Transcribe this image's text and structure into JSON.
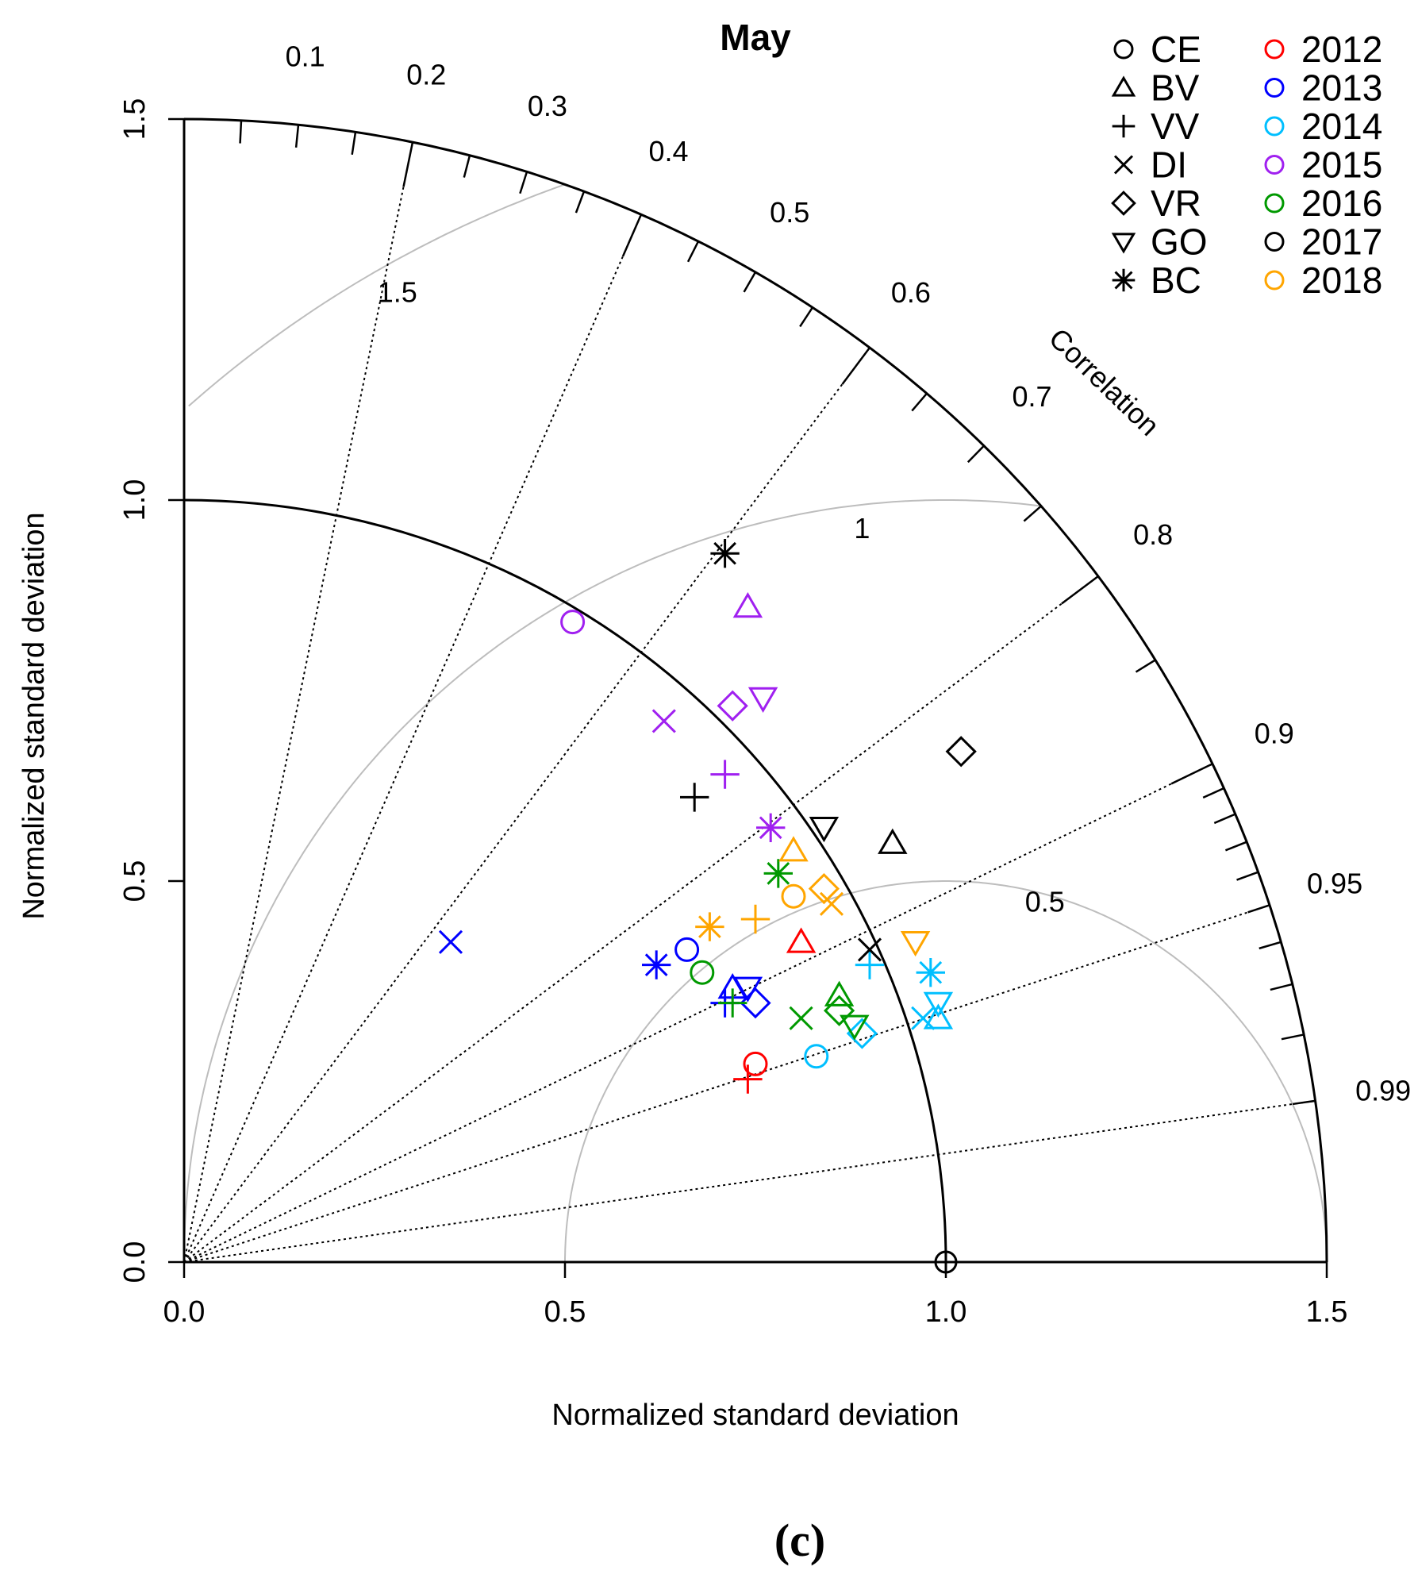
{
  "chart_data": {
    "type": "scatter",
    "subtype": "taylor-diagram",
    "title": "May",
    "xlabel": "Normalized standard deviation",
    "ylabel": "Normalized standard deviation",
    "correlation_label": "Correlation",
    "panel_label": "(c)",
    "sd_range": [
      0,
      1.5
    ],
    "sd_ticks": [
      "0.0",
      "0.5",
      "1.0",
      "1.5"
    ],
    "correlation_ticks": [
      "0.1",
      "0.2",
      "0.3",
      "0.4",
      "0.5",
      "0.6",
      "0.7",
      "0.8",
      "0.9",
      "0.95",
      "0.99"
    ],
    "rms_contour_labels": [
      "0.5",
      "1",
      "1.5"
    ],
    "legend_position": "top-right",
    "symbol_legend": [
      {
        "name": "CE",
        "marker": "circle-icon"
      },
      {
        "name": "BV",
        "marker": "triangle-up-icon"
      },
      {
        "name": "VV",
        "marker": "plus-icon"
      },
      {
        "name": "DI",
        "marker": "cross-icon"
      },
      {
        "name": "VR",
        "marker": "diamond-icon"
      },
      {
        "name": "GO",
        "marker": "triangle-down-icon"
      },
      {
        "name": "BC",
        "marker": "asterisk-icon"
      }
    ],
    "year_legend": [
      {
        "name": "2012",
        "color": "#ff0000"
      },
      {
        "name": "2013",
        "color": "#0000ff"
      },
      {
        "name": "2014",
        "color": "#00bfff"
      },
      {
        "name": "2015",
        "color": "#a020f0"
      },
      {
        "name": "2016",
        "color": "#009900"
      },
      {
        "name": "2017",
        "color": "#000000"
      },
      {
        "name": "2018",
        "color": "#ffa500"
      }
    ],
    "reference_point": {
      "x": 1.0,
      "y": 0.0
    },
    "points": [
      {
        "year": "2012",
        "station": "CE",
        "x": 0.75,
        "y": 0.26
      },
      {
        "year": "2012",
        "station": "VV",
        "x": 0.74,
        "y": 0.24
      },
      {
        "year": "2012",
        "station": "BV",
        "x": 0.81,
        "y": 0.42
      },
      {
        "year": "2013",
        "station": "CE",
        "x": 0.66,
        "y": 0.41
      },
      {
        "year": "2013",
        "station": "BC",
        "x": 0.62,
        "y": 0.39
      },
      {
        "year": "2013",
        "station": "DI",
        "x": 0.35,
        "y": 0.42
      },
      {
        "year": "2013",
        "station": "VV",
        "x": 0.71,
        "y": 0.34
      },
      {
        "year": "2013",
        "station": "BV",
        "x": 0.72,
        "y": 0.36
      },
      {
        "year": "2013",
        "station": "GO",
        "x": 0.74,
        "y": 0.36
      },
      {
        "year": "2013",
        "station": "VR",
        "x": 0.75,
        "y": 0.34
      },
      {
        "year": "2014",
        "station": "CE",
        "x": 0.83,
        "y": 0.27
      },
      {
        "year": "2014",
        "station": "VR",
        "x": 0.89,
        "y": 0.3
      },
      {
        "year": "2014",
        "station": "VV",
        "x": 0.9,
        "y": 0.39
      },
      {
        "year": "2014",
        "station": "BC",
        "x": 0.98,
        "y": 0.38
      },
      {
        "year": "2014",
        "station": "DI",
        "x": 0.97,
        "y": 0.32
      },
      {
        "year": "2014",
        "station": "BV",
        "x": 0.99,
        "y": 0.32
      },
      {
        "year": "2014",
        "station": "GO",
        "x": 0.99,
        "y": 0.34
      },
      {
        "year": "2015",
        "station": "CE",
        "x": 0.51,
        "y": 0.84
      },
      {
        "year": "2015",
        "station": "BV",
        "x": 0.74,
        "y": 0.86
      },
      {
        "year": "2015",
        "station": "VR",
        "x": 0.72,
        "y": 0.73
      },
      {
        "year": "2015",
        "station": "GO",
        "x": 0.76,
        "y": 0.74
      },
      {
        "year": "2015",
        "station": "DI",
        "x": 0.63,
        "y": 0.71
      },
      {
        "year": "2015",
        "station": "VV",
        "x": 0.71,
        "y": 0.64
      },
      {
        "year": "2015",
        "station": "BC",
        "x": 0.77,
        "y": 0.57
      },
      {
        "year": "2016",
        "station": "CE",
        "x": 0.68,
        "y": 0.38
      },
      {
        "year": "2016",
        "station": "BC",
        "x": 0.78,
        "y": 0.51
      },
      {
        "year": "2016",
        "station": "VV",
        "x": 0.72,
        "y": 0.34
      },
      {
        "year": "2016",
        "station": "DI",
        "x": 0.81,
        "y": 0.32
      },
      {
        "year": "2016",
        "station": "BV",
        "x": 0.86,
        "y": 0.35
      },
      {
        "year": "2016",
        "station": "VR",
        "x": 0.86,
        "y": 0.33
      },
      {
        "year": "2016",
        "station": "GO",
        "x": 0.88,
        "y": 0.31
      },
      {
        "year": "2017",
        "station": "BC",
        "x": 0.71,
        "y": 0.93
      },
      {
        "year": "2017",
        "station": "VV",
        "x": 0.67,
        "y": 0.61
      },
      {
        "year": "2017",
        "station": "GO",
        "x": 0.84,
        "y": 0.57
      },
      {
        "year": "2017",
        "station": "BV",
        "x": 0.93,
        "y": 0.55
      },
      {
        "year": "2017",
        "station": "VR",
        "x": 1.02,
        "y": 0.67
      },
      {
        "year": "2017",
        "station": "DI",
        "x": 0.9,
        "y": 0.41
      },
      {
        "year": "2018",
        "station": "BV",
        "x": 0.8,
        "y": 0.54
      },
      {
        "year": "2018",
        "station": "CE",
        "x": 0.8,
        "y": 0.48
      },
      {
        "year": "2018",
        "station": "VR",
        "x": 0.84,
        "y": 0.49
      },
      {
        "year": "2018",
        "station": "DI",
        "x": 0.85,
        "y": 0.47
      },
      {
        "year": "2018",
        "station": "BC",
        "x": 0.69,
        "y": 0.44
      },
      {
        "year": "2018",
        "station": "VV",
        "x": 0.75,
        "y": 0.45
      },
      {
        "year": "2018",
        "station": "GO",
        "x": 0.96,
        "y": 0.42
      }
    ]
  }
}
